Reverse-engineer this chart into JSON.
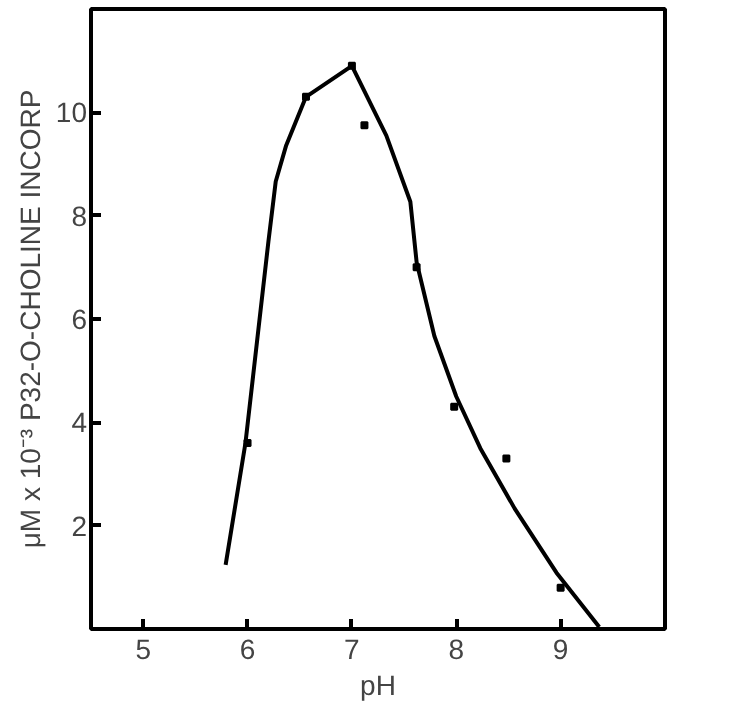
{
  "chart_data": {
    "type": "line",
    "xlabel": "pH",
    "ylabel": "μM x 10⁻³ P32-O-CHOLINE INCORP",
    "xlim": [
      4.5,
      10
    ],
    "ylim": [
      0,
      12
    ],
    "xticks": [
      5,
      6,
      7,
      8,
      9
    ],
    "yticks": [
      2,
      4,
      6,
      8,
      10
    ],
    "grid": false,
    "series": [
      {
        "color": "#000000",
        "marker": "none",
        "line_style": "solid",
        "x": [
          5.79,
          5.98,
          6.2,
          6.27,
          6.37,
          6.56,
          7.0,
          7.33,
          7.56,
          7.62,
          7.79,
          8.0,
          8.23,
          8.56,
          8.96,
          9.37
        ],
        "values": [
          1.24,
          3.6,
          7.5,
          8.66,
          9.36,
          10.3,
          10.9,
          9.55,
          8.27,
          7.1,
          5.67,
          4.5,
          3.5,
          2.33,
          1.09,
          0.04
        ]
      },
      {
        "type": "scatter",
        "color": "#000000",
        "marker": "square",
        "x": [
          6.0,
          6.56,
          7.0,
          7.12,
          7.62,
          7.98,
          8.48,
          9.0
        ],
        "values": [
          3.6,
          10.3,
          10.9,
          9.75,
          7.0,
          4.3,
          3.3,
          0.8
        ]
      }
    ]
  }
}
